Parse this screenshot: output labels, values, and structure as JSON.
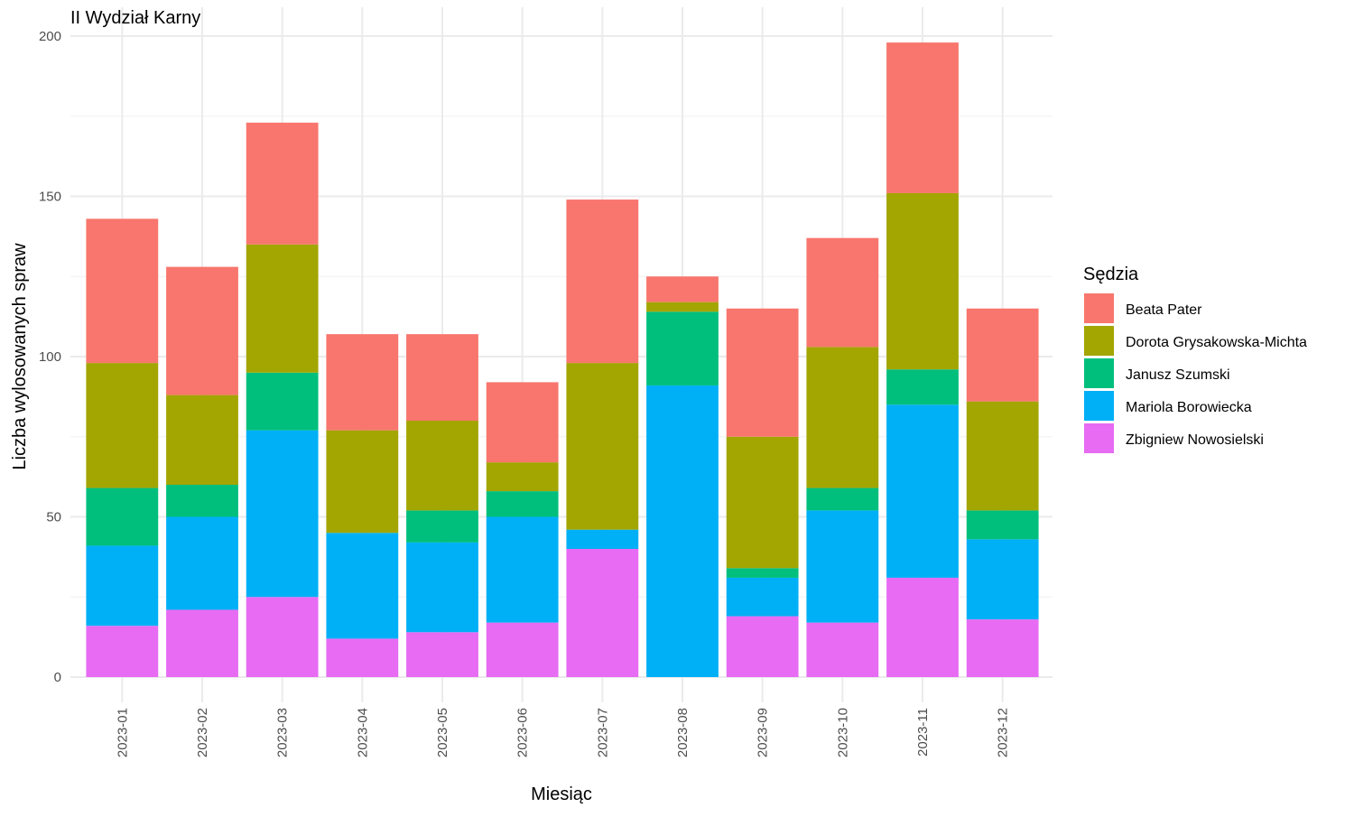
{
  "chart_data": {
    "type": "bar",
    "stacked": true,
    "title": "II Wydział Karny",
    "xlabel": "Miesiąc",
    "ylabel": "Liczba wylosowanych spraw",
    "ylim": [
      0,
      200
    ],
    "yticks": [
      0,
      50,
      100,
      150,
      200
    ],
    "grid": true,
    "legend": {
      "title": "Sędzia",
      "placement": "right"
    },
    "categories": [
      "2023-01",
      "2023-02",
      "2023-03",
      "2023-04",
      "2023-05",
      "2023-06",
      "2023-07",
      "2023-08",
      "2023-09",
      "2023-10",
      "2023-11",
      "2023-12"
    ],
    "series": [
      {
        "name": "Zbigniew Nowosielski",
        "color": "#E76BF3",
        "values": [
          16,
          21,
          25,
          12,
          14,
          17,
          40,
          0,
          19,
          17,
          31,
          18
        ]
      },
      {
        "name": "Mariola Borowiecka",
        "color": "#00B0F6",
        "values": [
          25,
          29,
          52,
          33,
          28,
          33,
          6,
          91,
          12,
          35,
          54,
          25
        ]
      },
      {
        "name": "Janusz Szumski",
        "color": "#00BF7D",
        "values": [
          18,
          10,
          18,
          0,
          10,
          8,
          0,
          23,
          3,
          7,
          11,
          9
        ]
      },
      {
        "name": "Dorota Grysakowska-Michta",
        "color": "#A3A500",
        "values": [
          39,
          28,
          40,
          32,
          28,
          9,
          52,
          3,
          41,
          44,
          55,
          34
        ]
      },
      {
        "name": "Beata Pater",
        "color": "#F8766D",
        "values": [
          45,
          40,
          38,
          30,
          27,
          25,
          51,
          8,
          40,
          34,
          47,
          29
        ]
      }
    ],
    "legend_order": [
      "Beata Pater",
      "Dorota Grysakowska-Michta",
      "Janusz Szumski",
      "Mariola Borowiecka",
      "Zbigniew Nowosielski"
    ]
  }
}
